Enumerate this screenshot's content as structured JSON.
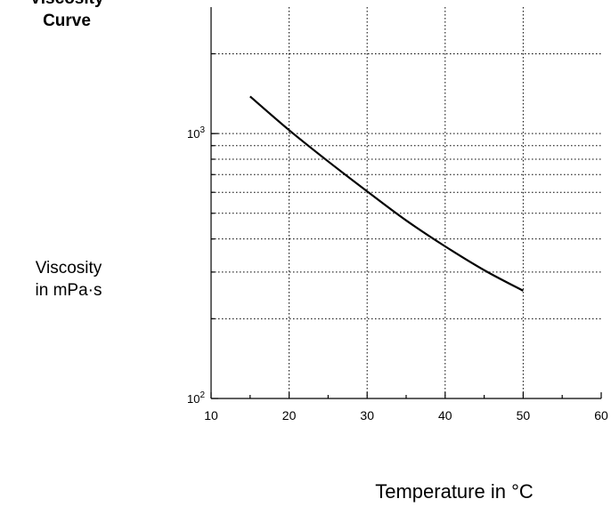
{
  "chart_data": {
    "type": "line",
    "title_lines": [
      "Viscosity",
      "Curve"
    ],
    "ylabel_lines": [
      "Viscosity",
      "in mPa·s"
    ],
    "xlabel": "Temperature in °C",
    "xlim": [
      10,
      60
    ],
    "ylim": [
      100,
      3000
    ],
    "yscale": "log",
    "xticks": [
      10,
      20,
      30,
      40,
      50,
      60
    ],
    "yticks": [
      {
        "value": 100,
        "base": "10",
        "exp": "2"
      },
      {
        "value": 1000,
        "base": "10",
        "exp": "3"
      }
    ],
    "grid": true,
    "series": [
      {
        "x": [
          15,
          20,
          25,
          30,
          35,
          40,
          45,
          50
        ],
        "y": [
          1380,
          1030,
          785,
          605,
          470,
          375,
          305,
          255
        ],
        "color": "#000000"
      }
    ]
  }
}
